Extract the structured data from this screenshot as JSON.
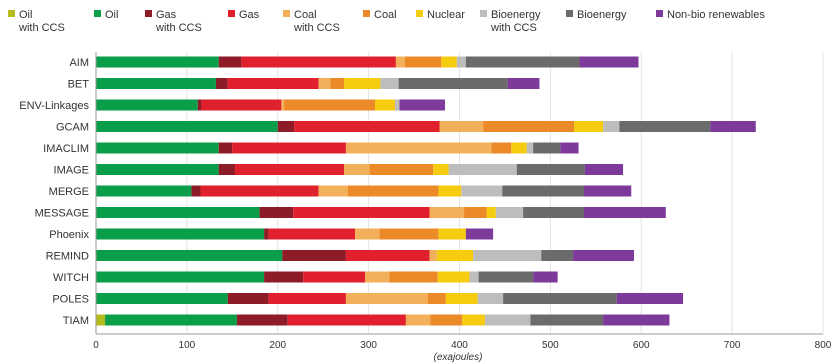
{
  "chart_data": {
    "type": "bar",
    "orientation": "horizontal",
    "stacked": true,
    "xlabel": "(exajoules)",
    "xlim": [
      0,
      800
    ],
    "xticks": [
      0,
      100,
      200,
      300,
      400,
      500,
      600,
      700,
      800
    ],
    "categories": [
      "AIM",
      "BET",
      "ENV-Linkages",
      "GCAM",
      "IMACLIM",
      "IMAGE",
      "MERGE",
      "MESSAGE",
      "Phoenix",
      "REMIND",
      "WITCH",
      "POLES",
      "TIAM"
    ],
    "series": [
      {
        "name": "Oil with CCS",
        "color": "#b5bd1e",
        "values": [
          0,
          0,
          0,
          0,
          0,
          0,
          0,
          0,
          0,
          0,
          0,
          0,
          10
        ]
      },
      {
        "name": "Oil",
        "color": "#0a9e4a",
        "values": [
          135,
          132,
          112,
          200,
          135,
          135,
          105,
          180,
          185,
          205,
          185,
          145,
          145
        ]
      },
      {
        "name": "Gas with CCS",
        "color": "#8e1b28",
        "values": [
          25,
          13,
          4,
          18,
          15,
          18,
          10,
          37,
          5,
          70,
          43,
          45,
          56
        ]
      },
      {
        "name": "Gas",
        "color": "#e0202d",
        "values": [
          170,
          100,
          88,
          160,
          125,
          120,
          130,
          150,
          95,
          92,
          68,
          85,
          130
        ]
      },
      {
        "name": "Coal with CCS",
        "color": "#f2b05a",
        "values": [
          10,
          13,
          3,
          48,
          160,
          28,
          32,
          38,
          27,
          8,
          27,
          90,
          27
        ]
      },
      {
        "name": "Coal",
        "color": "#ec8a2a",
        "values": [
          40,
          15,
          100,
          100,
          22,
          70,
          100,
          25,
          65,
          0,
          53,
          20,
          35
        ]
      },
      {
        "name": "Nuclear",
        "color": "#f5cc10",
        "values": [
          17,
          40,
          22,
          32,
          17,
          17,
          25,
          10,
          30,
          40,
          35,
          35,
          25
        ]
      },
      {
        "name": "Bioenergy with CCS",
        "color": "#bdbdbd",
        "values": [
          10,
          20,
          5,
          18,
          7,
          75,
          45,
          30,
          0,
          75,
          10,
          28,
          50
        ]
      },
      {
        "name": "Bioenergy",
        "color": "#6b6b6b",
        "values": [
          125,
          120,
          0,
          100,
          30,
          75,
          90,
          67,
          0,
          35,
          60,
          125,
          80
        ]
      },
      {
        "name": "Non-bio renewables",
        "color": "#7d3a9b",
        "values": [
          65,
          35,
          50,
          50,
          20,
          42,
          52,
          90,
          30,
          67,
          27,
          73,
          73
        ]
      }
    ]
  }
}
